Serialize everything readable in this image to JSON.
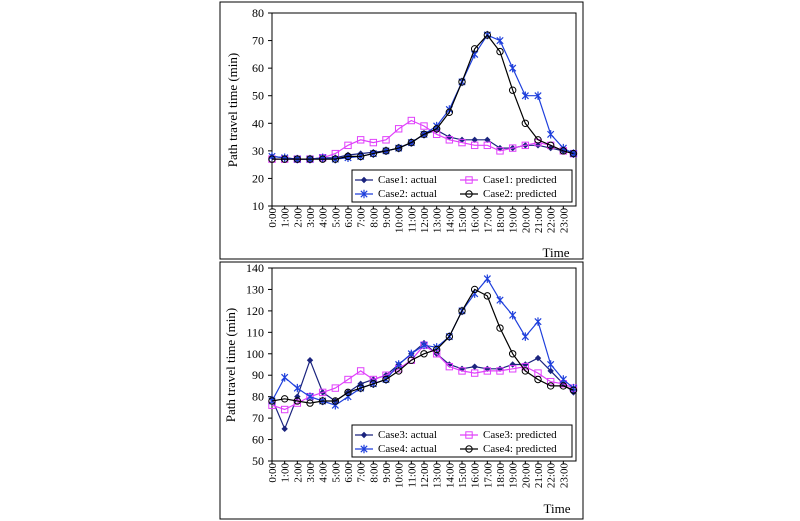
{
  "chart_data": [
    {
      "type": "line",
      "ylabel": "Path travel time (min)",
      "xlabel": "Time",
      "ylim": [
        10,
        80
      ],
      "yticks": [
        10,
        20,
        30,
        40,
        50,
        60,
        70,
        80
      ],
      "x_ticks": [
        "0:00",
        "1:00",
        "2:00",
        "3:00",
        "4:00",
        "5:00",
        "6:00",
        "7:00",
        "8:00",
        "9:00",
        "10:00",
        "11:00",
        "12:00",
        "13:00",
        "14:00",
        "15:00",
        "16:00",
        "17:00",
        "18:00",
        "19:00",
        "20:00",
        "21:00",
        "22:00",
        "23:00"
      ],
      "grid": false,
      "legend_position": "bottom-right",
      "series": [
        {
          "name": "Case1: actual",
          "color": "#1a237e",
          "marker": "diamond",
          "points": [
            [
              0,
              28
            ],
            [
              1,
              27.5
            ],
            [
              2,
              27
            ],
            [
              3,
              27
            ],
            [
              4,
              27.5
            ],
            [
              5,
              27.5
            ],
            [
              6,
              28.5
            ],
            [
              7,
              29
            ],
            [
              8,
              29.5
            ],
            [
              9,
              30
            ],
            [
              10,
              31
            ],
            [
              11,
              33
            ],
            [
              12,
              36
            ],
            [
              13,
              37.5
            ],
            [
              14,
              35
            ],
            [
              15,
              34
            ],
            [
              16,
              34
            ],
            [
              17,
              34
            ],
            [
              18,
              31
            ],
            [
              19,
              31
            ],
            [
              20,
              32
            ],
            [
              21,
              32
            ],
            [
              22,
              31
            ],
            [
              23,
              30
            ],
            [
              23.8,
              29
            ]
          ]
        },
        {
          "name": "Case1: predicted",
          "color": "#e040fb",
          "marker": "square",
          "points": [
            [
              0,
              27
            ],
            [
              1,
              27
            ],
            [
              2,
              27
            ],
            [
              3,
              27
            ],
            [
              4,
              27.5
            ],
            [
              5,
              29
            ],
            [
              6,
              32
            ],
            [
              7,
              34
            ],
            [
              8,
              33
            ],
            [
              9,
              34
            ],
            [
              10,
              38
            ],
            [
              11,
              41
            ],
            [
              12,
              39
            ],
            [
              13,
              36
            ],
            [
              14,
              34
            ],
            [
              15,
              33
            ],
            [
              16,
              32
            ],
            [
              17,
              32
            ],
            [
              18,
              30
            ],
            [
              19,
              31
            ],
            [
              20,
              32
            ],
            [
              21,
              33
            ],
            [
              22,
              32
            ],
            [
              23,
              30
            ],
            [
              23.8,
              29
            ]
          ]
        },
        {
          "name": "Case2: actual",
          "color": "#1e3fdc",
          "marker": "x",
          "points": [
            [
              0,
              28
            ],
            [
              1,
              27.5
            ],
            [
              2,
              27
            ],
            [
              3,
              27
            ],
            [
              4,
              27.5
            ],
            [
              5,
              27
            ],
            [
              6,
              27.5
            ],
            [
              7,
              28
            ],
            [
              8,
              29
            ],
            [
              9,
              30
            ],
            [
              10,
              31
            ],
            [
              11,
              33
            ],
            [
              12,
              36
            ],
            [
              13,
              39
            ],
            [
              14,
              45
            ],
            [
              15,
              55
            ],
            [
              16,
              65
            ],
            [
              17,
              72
            ],
            [
              18,
              70
            ],
            [
              19,
              60
            ],
            [
              20,
              50
            ],
            [
              21,
              50
            ],
            [
              22,
              36
            ],
            [
              23,
              31
            ],
            [
              23.8,
              29
            ]
          ]
        },
        {
          "name": "Case2: predicted",
          "color": "#000000",
          "marker": "circle",
          "points": [
            [
              0,
              27
            ],
            [
              1,
              27
            ],
            [
              2,
              27
            ],
            [
              3,
              27
            ],
            [
              4,
              27
            ],
            [
              5,
              27
            ],
            [
              6,
              28
            ],
            [
              7,
              28
            ],
            [
              8,
              29
            ],
            [
              9,
              30
            ],
            [
              10,
              31
            ],
            [
              11,
              33
            ],
            [
              12,
              36
            ],
            [
              13,
              38
            ],
            [
              14,
              44
            ],
            [
              15,
              55
            ],
            [
              16,
              67
            ],
            [
              17,
              72
            ],
            [
              18,
              66
            ],
            [
              19,
              52
            ],
            [
              20,
              40
            ],
            [
              21,
              34
            ],
            [
              22,
              32
            ],
            [
              23,
              30
            ],
            [
              23.8,
              29
            ]
          ]
        }
      ]
    },
    {
      "type": "line",
      "ylabel": "Path travel time (min)",
      "xlabel": "Time",
      "ylim": [
        50,
        140
      ],
      "yticks": [
        50,
        60,
        70,
        80,
        90,
        100,
        110,
        120,
        130,
        140
      ],
      "x_ticks": [
        "0:00",
        "1:00",
        "2:00",
        "3:00",
        "4:00",
        "5:00",
        "6:00",
        "7:00",
        "8:00",
        "9:00",
        "10:00",
        "11:00",
        "12:00",
        "13:00",
        "14:00",
        "15:00",
        "16:00",
        "17:00",
        "18:00",
        "19:00",
        "20:00",
        "21:00",
        "22:00",
        "23:00"
      ],
      "grid": false,
      "legend_position": "bottom-right",
      "series": [
        {
          "name": "Case3: actual",
          "color": "#1a237e",
          "marker": "diamond",
          "points": [
            [
              0,
              79
            ],
            [
              1,
              65
            ],
            [
              2,
              80
            ],
            [
              3,
              97
            ],
            [
              4,
              82
            ],
            [
              5,
              78
            ],
            [
              6,
              82
            ],
            [
              7,
              86
            ],
            [
              8,
              88
            ],
            [
              9,
              90
            ],
            [
              10,
              95
            ],
            [
              11,
              100
            ],
            [
              12,
              105
            ],
            [
              13,
              100
            ],
            [
              14,
              95
            ],
            [
              15,
              93
            ],
            [
              16,
              94
            ],
            [
              17,
              93
            ],
            [
              18,
              93
            ],
            [
              19,
              95
            ],
            [
              20,
              95
            ],
            [
              21,
              98
            ],
            [
              22,
              92
            ],
            [
              23,
              86
            ],
            [
              23.8,
              82
            ]
          ]
        },
        {
          "name": "Case3: predicted",
          "color": "#e040fb",
          "marker": "square",
          "points": [
            [
              0,
              76
            ],
            [
              1,
              74
            ],
            [
              2,
              77
            ],
            [
              3,
              80
            ],
            [
              4,
              82
            ],
            [
              5,
              84
            ],
            [
              6,
              88
            ],
            [
              7,
              92
            ],
            [
              8,
              88
            ],
            [
              9,
              90
            ],
            [
              10,
              93
            ],
            [
              11,
              97
            ],
            [
              12,
              104
            ],
            [
              13,
              100
            ],
            [
              14,
              94
            ],
            [
              15,
              92
            ],
            [
              16,
              91
            ],
            [
              17,
              92
            ],
            [
              18,
              92
            ],
            [
              19,
              93
            ],
            [
              20,
              94
            ],
            [
              21,
              91
            ],
            [
              22,
              87
            ],
            [
              23,
              86
            ],
            [
              23.8,
              84
            ]
          ]
        },
        {
          "name": "Case4: actual",
          "color": "#1e3fdc",
          "marker": "x",
          "points": [
            [
              0,
              78
            ],
            [
              1,
              89
            ],
            [
              2,
              84
            ],
            [
              3,
              80
            ],
            [
              4,
              78
            ],
            [
              5,
              76
            ],
            [
              6,
              80
            ],
            [
              7,
              84
            ],
            [
              8,
              86
            ],
            [
              9,
              88
            ],
            [
              10,
              95
            ],
            [
              11,
              100
            ],
            [
              12,
              104
            ],
            [
              13,
              103
            ],
            [
              14,
              108
            ],
            [
              15,
              120
            ],
            [
              16,
              128
            ],
            [
              17,
              135
            ],
            [
              18,
              125
            ],
            [
              19,
              118
            ],
            [
              20,
              108
            ],
            [
              21,
              115
            ],
            [
              22,
              95
            ],
            [
              23,
              88
            ],
            [
              23.8,
              84
            ]
          ]
        },
        {
          "name": "Case4: predicted",
          "color": "#000000",
          "marker": "circle",
          "points": [
            [
              0,
              78
            ],
            [
              1,
              79
            ],
            [
              2,
              78
            ],
            [
              3,
              77
            ],
            [
              4,
              78
            ],
            [
              5,
              78
            ],
            [
              6,
              82
            ],
            [
              7,
              84
            ],
            [
              8,
              86
            ],
            [
              9,
              88
            ],
            [
              10,
              92
            ],
            [
              11,
              97
            ],
            [
              12,
              100
            ],
            [
              13,
              102
            ],
            [
              14,
              108
            ],
            [
              15,
              120
            ],
            [
              16,
              130
            ],
            [
              17,
              127
            ],
            [
              18,
              112
            ],
            [
              19,
              100
            ],
            [
              20,
              92
            ],
            [
              21,
              88
            ],
            [
              22,
              85
            ],
            [
              23,
              85
            ],
            [
              23.8,
              83
            ]
          ]
        }
      ]
    }
  ]
}
